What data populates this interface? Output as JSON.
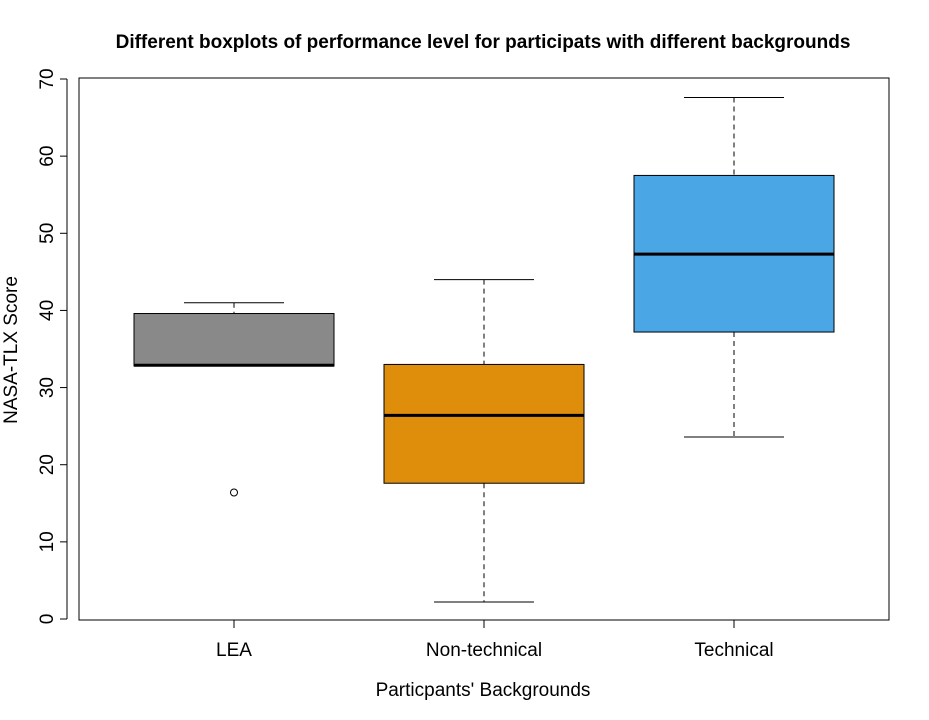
{
  "chart_data": {
    "type": "boxplot",
    "title": "Different boxplots of performance level for participats with different backgrounds",
    "xlabel": "Particpants' Backgrounds",
    "ylabel": "NASA-TLX Score",
    "ylim": [
      0,
      70
    ],
    "yticks": [
      "0",
      "10",
      "20",
      "30",
      "40",
      "50",
      "60",
      "70"
    ],
    "categories": [
      "LEA",
      "Non-technical",
      "Technical"
    ],
    "boxes": [
      {
        "name": "LEA",
        "whisker_low": 32.8,
        "q1": 32.8,
        "median": 32.9,
        "q3": 39.6,
        "whisker_high": 41.0,
        "outliers": [
          16.4
        ],
        "color": "#898989"
      },
      {
        "name": "Non-technical",
        "whisker_low": 2.2,
        "q1": 17.6,
        "median": 26.4,
        "q3": 33.0,
        "whisker_high": 44.0,
        "outliers": [],
        "color": "#df8e0b"
      },
      {
        "name": "Technical",
        "whisker_low": 23.6,
        "q1": 37.2,
        "median": 47.3,
        "q3": 57.5,
        "whisker_high": 67.6,
        "outliers": [],
        "color": "#4aa6e4"
      }
    ]
  }
}
